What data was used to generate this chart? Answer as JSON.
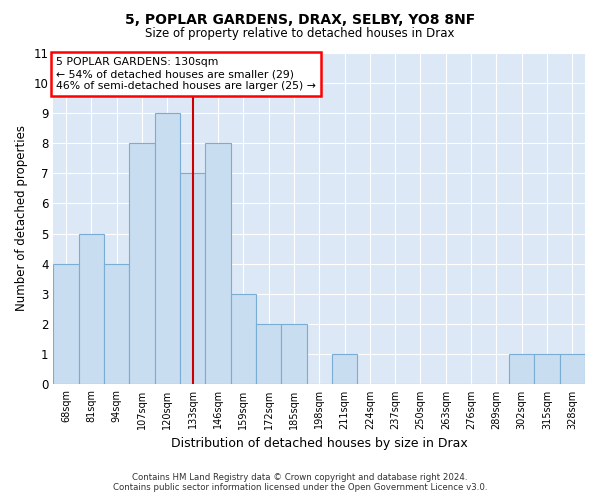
{
  "title1": "5, POPLAR GARDENS, DRAX, SELBY, YO8 8NF",
  "title2": "Size of property relative to detached houses in Drax",
  "xlabel": "Distribution of detached houses by size in Drax",
  "ylabel": "Number of detached properties",
  "categories": [
    "68sqm",
    "81sqm",
    "94sqm",
    "107sqm",
    "120sqm",
    "133sqm",
    "146sqm",
    "159sqm",
    "172sqm",
    "185sqm",
    "198sqm",
    "211sqm",
    "224sqm",
    "237sqm",
    "250sqm",
    "263sqm",
    "276sqm",
    "289sqm",
    "302sqm",
    "315sqm",
    "328sqm"
  ],
  "values": [
    4,
    5,
    4,
    8,
    9,
    7,
    8,
    3,
    2,
    2,
    0,
    1,
    0,
    0,
    0,
    0,
    0,
    0,
    1,
    1,
    1
  ],
  "bar_color": "#c8ddf0",
  "bar_edgecolor": "#7aadd4",
  "highlight_index": 5,
  "highlight_color": "#cc0000",
  "annotation_line1": "5 POPLAR GARDENS: 130sqm",
  "annotation_line2": "← 54% of detached houses are smaller (29)",
  "annotation_line3": "46% of semi-detached houses are larger (25) →",
  "ylim": [
    0,
    11
  ],
  "yticks": [
    0,
    1,
    2,
    3,
    4,
    5,
    6,
    7,
    8,
    9,
    10,
    11
  ],
  "background_color": "#dce8f5",
  "footer1": "Contains HM Land Registry data © Crown copyright and database right 2024.",
  "footer2": "Contains public sector information licensed under the Open Government Licence v3.0."
}
